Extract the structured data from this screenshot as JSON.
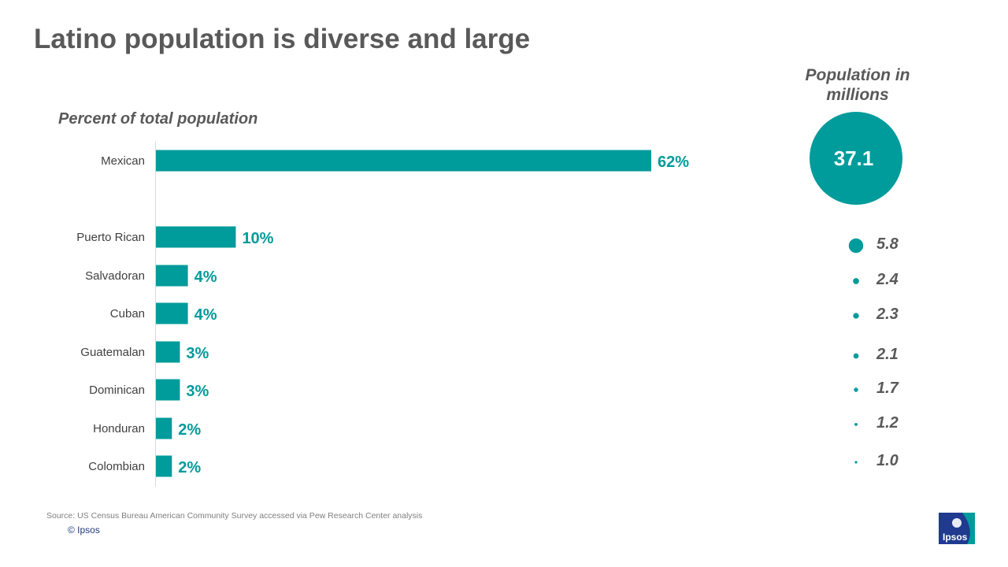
{
  "slide": {
    "title": "Latino population is diverse and large",
    "source": "Source: US Census Bureau American Community  Survey accessed via Pew Research Center analysis",
    "copyright": "© Ipsos",
    "logo_text": "Ipsos"
  },
  "chart_data": {
    "type": "bar",
    "orientation": "horizontal",
    "subtitle": "Percent of total population",
    "right_header": "Population in millions",
    "categories": [
      "Mexican",
      "Puerto Rican",
      "Salvadoran",
      "Cuban",
      "Guatemalan",
      "Dominican",
      "Honduran",
      "Colombian"
    ],
    "values": [
      62,
      10,
      4,
      4,
      3,
      3,
      2,
      2
    ],
    "value_labels": [
      "62%",
      "10%",
      "4%",
      "4%",
      "3%",
      "3%",
      "2%",
      "2%"
    ],
    "population_millions": [
      37.1,
      5.8,
      2.4,
      2.3,
      2.1,
      1.7,
      1.2,
      1.0
    ],
    "population_labels": [
      "37.1",
      "5.8",
      "2.4",
      "2.3",
      "2.1",
      "1.7",
      "1.2",
      "1.0"
    ],
    "xlim": [
      0,
      62
    ],
    "grid": false,
    "colors": {
      "bar": "#009B9B",
      "bubble": "#009B9B",
      "value_label": "#009B9B"
    }
  }
}
